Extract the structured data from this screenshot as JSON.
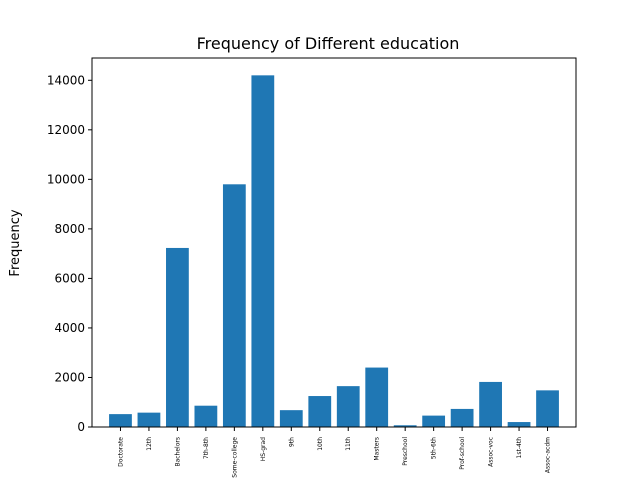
{
  "chart_data": {
    "type": "bar",
    "title": "Frequency of Different education",
    "xlabel": "",
    "ylabel": "Frequency",
    "categories": [
      "Doctorate",
      "12th",
      "Bachelors",
      "7th-8th",
      "Some-college",
      "HS-grad",
      "9th",
      "10th",
      "11th",
      "Masters",
      "Preschool",
      "5th-6th",
      "Prof-school",
      "Assoc-voc",
      "1st-4th",
      "Assoc-acdm"
    ],
    "values": [
      520,
      580,
      7230,
      860,
      9800,
      14200,
      680,
      1250,
      1650,
      2400,
      70,
      460,
      730,
      1820,
      200,
      1480
    ],
    "ylim": [
      0,
      14900
    ],
    "yticks": [
      0,
      2000,
      4000,
      6000,
      8000,
      10000,
      12000,
      14000
    ],
    "bar_color": "#1f77b4",
    "grid": false,
    "legend": "none"
  }
}
